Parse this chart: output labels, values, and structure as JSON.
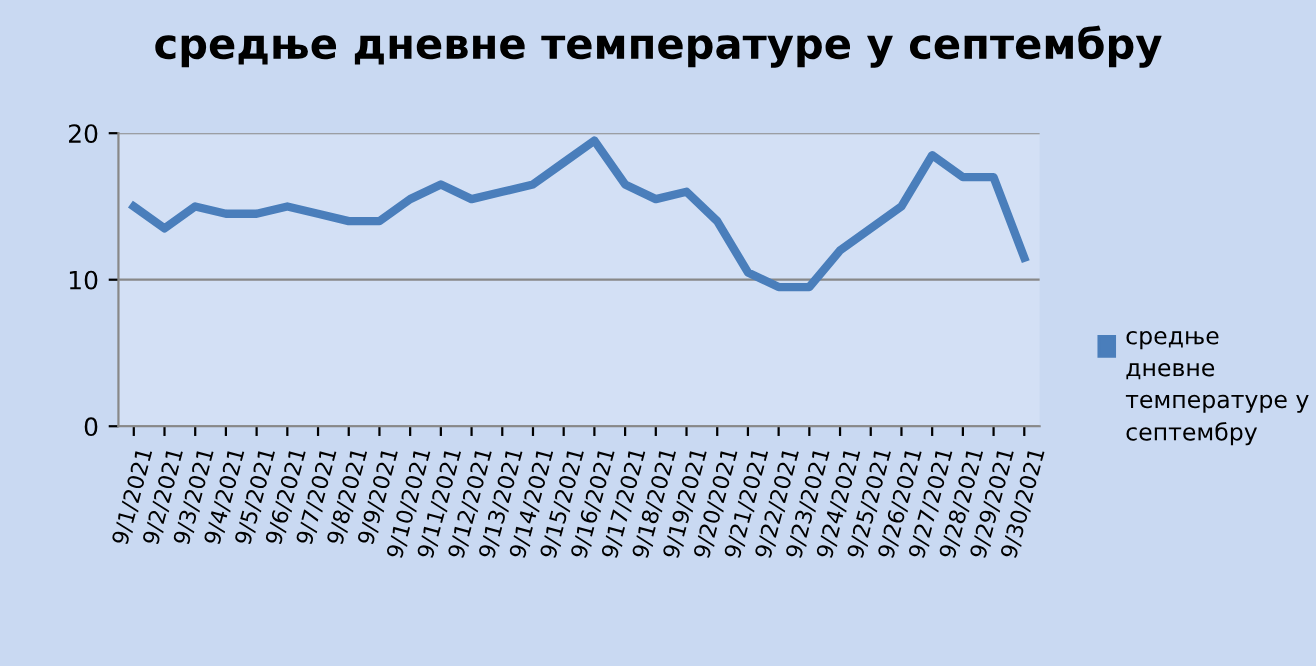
{
  "chart_data": {
    "type": "line",
    "title": "средње дневне температуре у септембру",
    "categories": [
      "9/1/2021",
      "9/2/2021",
      "9/3/2021",
      "9/4/2021",
      "9/5/2021",
      "9/6/2021",
      "9/7/2021",
      "9/8/2021",
      "9/9/2021",
      "9/10/2021",
      "9/11/2021",
      "9/12/2021",
      "9/13/2021",
      "9/14/2021",
      "9/15/2021",
      "9/16/2021",
      "9/17/2021",
      "9/18/2021",
      "9/19/2021",
      "9/20/2021",
      "9/21/2021",
      "9/22/2021",
      "9/23/2021",
      "9/24/2021",
      "9/25/2021",
      "9/26/2021",
      "9/27/2021",
      "9/28/2021",
      "9/29/2021",
      "9/30/2021"
    ],
    "series": [
      {
        "name": "средње дневне температуре у септембру",
        "color": "#4a7ebb",
        "values": [
          15,
          13.5,
          15,
          14.5,
          14.5,
          15,
          14.5,
          14,
          14,
          15.5,
          16.5,
          15.5,
          16,
          16.5,
          18,
          19.5,
          16.5,
          15.5,
          16,
          14,
          10.5,
          9.5,
          9.5,
          12,
          13.5,
          15,
          18.5,
          17,
          17,
          11.5
        ]
      }
    ],
    "ylim": [
      0,
      20
    ],
    "yticks": [
      0,
      10,
      20
    ],
    "grid": "y",
    "legend": "right",
    "marker": "none",
    "line_style": "solid"
  }
}
